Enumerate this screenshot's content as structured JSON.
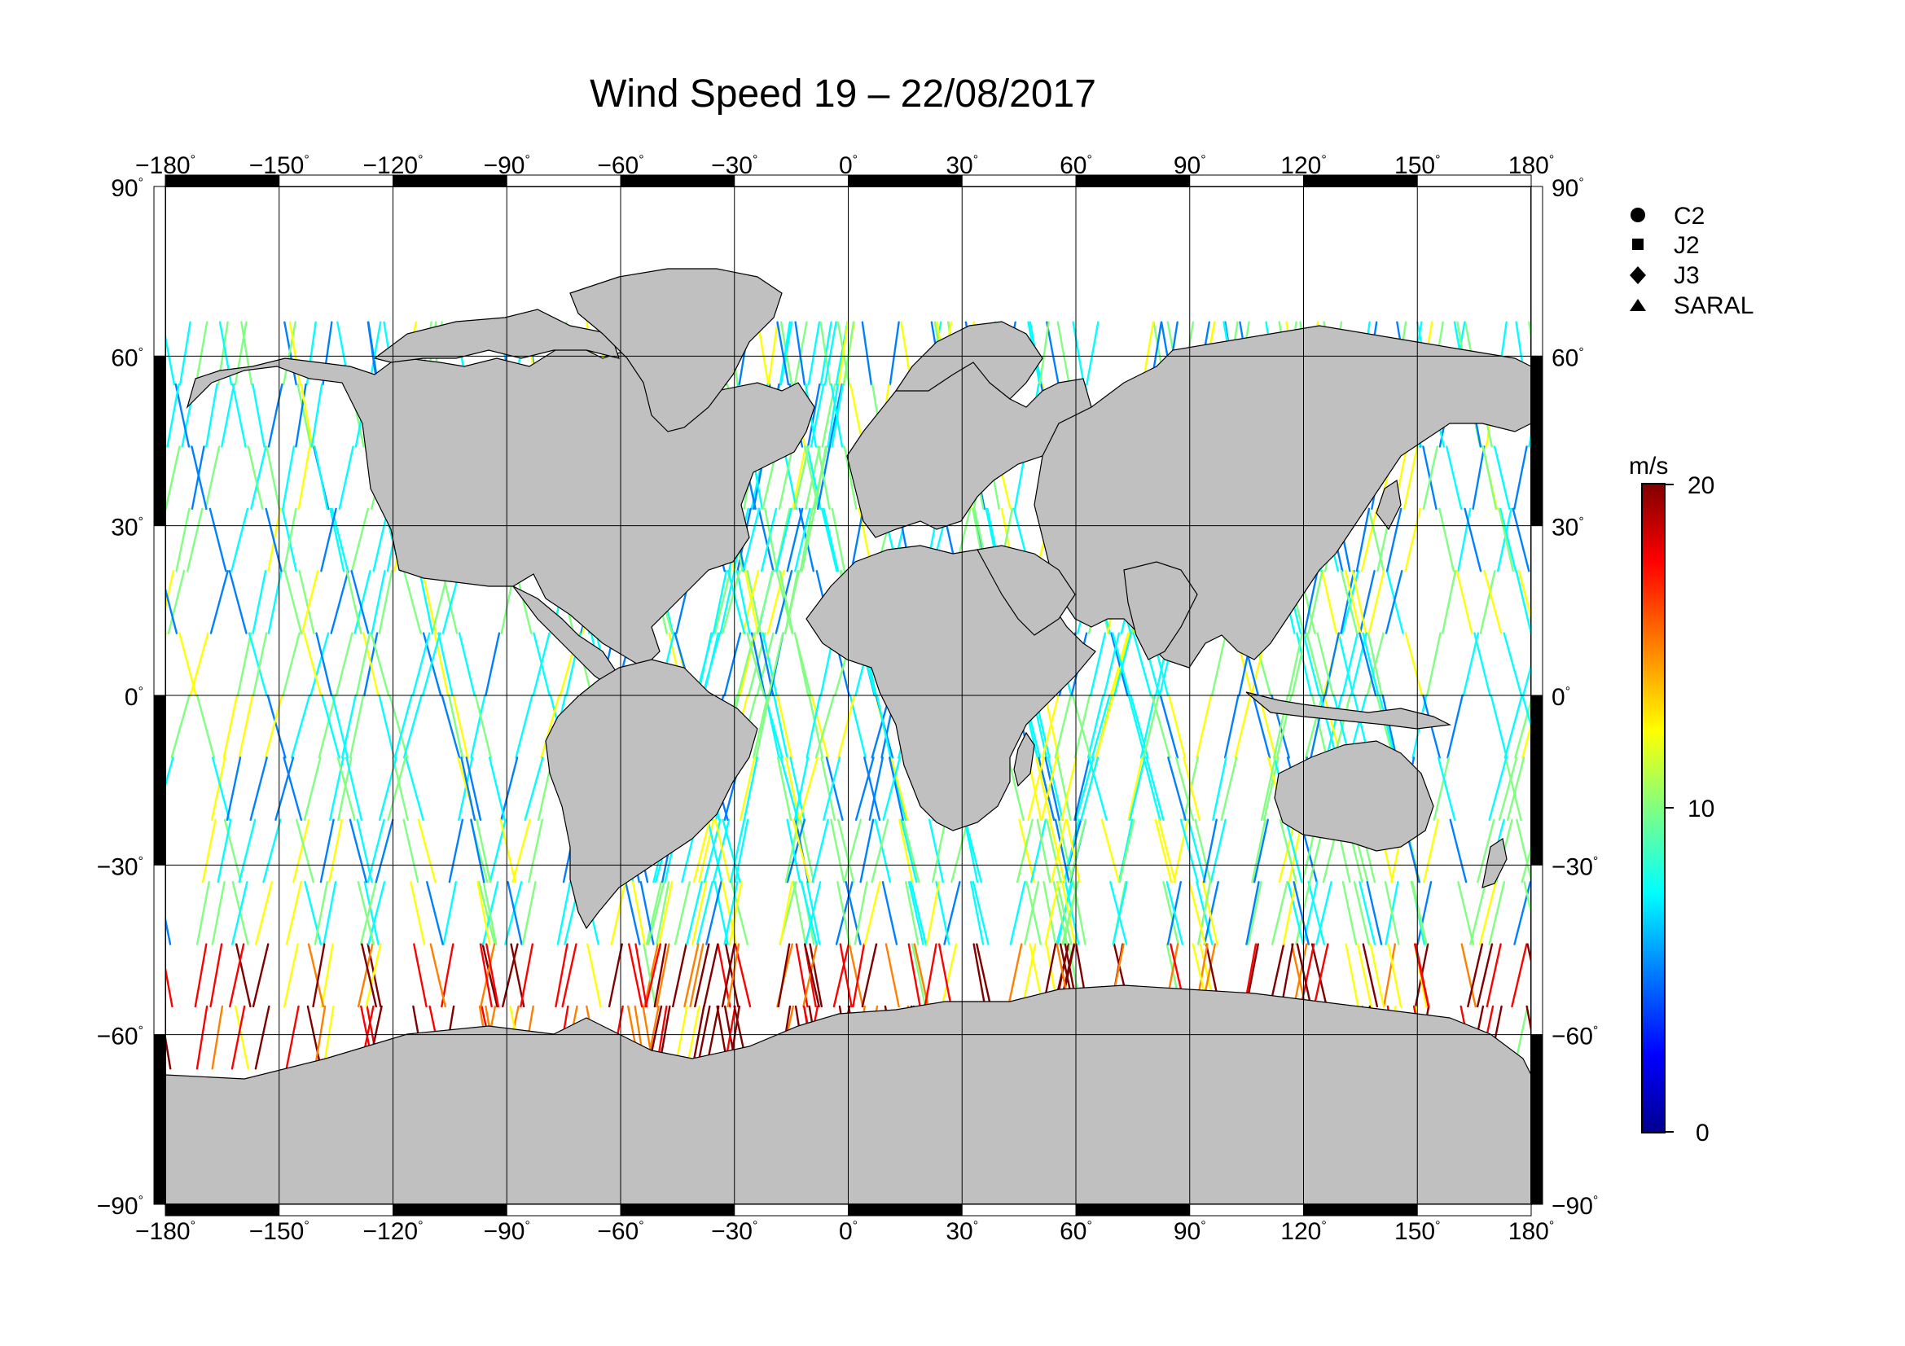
{
  "title": "Wind Speed 19 – 22/08/2017",
  "degree_symbol": "°",
  "lon_ticks": [
    "−180",
    "−150",
    "−120",
    "−90",
    "−60",
    "−30",
    "0",
    "30",
    "60",
    "90",
    "120",
    "150",
    "180"
  ],
  "lat_ticks": [
    "90",
    "60",
    "30",
    "0",
    "−30",
    "−60",
    "−90"
  ],
  "legend": {
    "items": [
      {
        "label": "C2",
        "symbol": "circle-icon"
      },
      {
        "label": "J2",
        "symbol": "square-icon"
      },
      {
        "label": "J3",
        "symbol": "diamond-icon"
      },
      {
        "label": "SARAL",
        "symbol": "triangle-icon"
      }
    ]
  },
  "colorbar": {
    "unit": "m/s",
    "min_label": "0",
    "mid_label": "10",
    "max_label": "20",
    "range": [
      0,
      20
    ],
    "colors": [
      "#00008f",
      "#0000ff",
      "#0080ff",
      "#00ffff",
      "#80ff80",
      "#ffff00",
      "#ff8000",
      "#ff0000",
      "#800000"
    ]
  },
  "colors": {
    "land": "#c0c0c0",
    "ocean": "#ffffff",
    "coastline": "#000000",
    "grid": "#000000"
  }
}
